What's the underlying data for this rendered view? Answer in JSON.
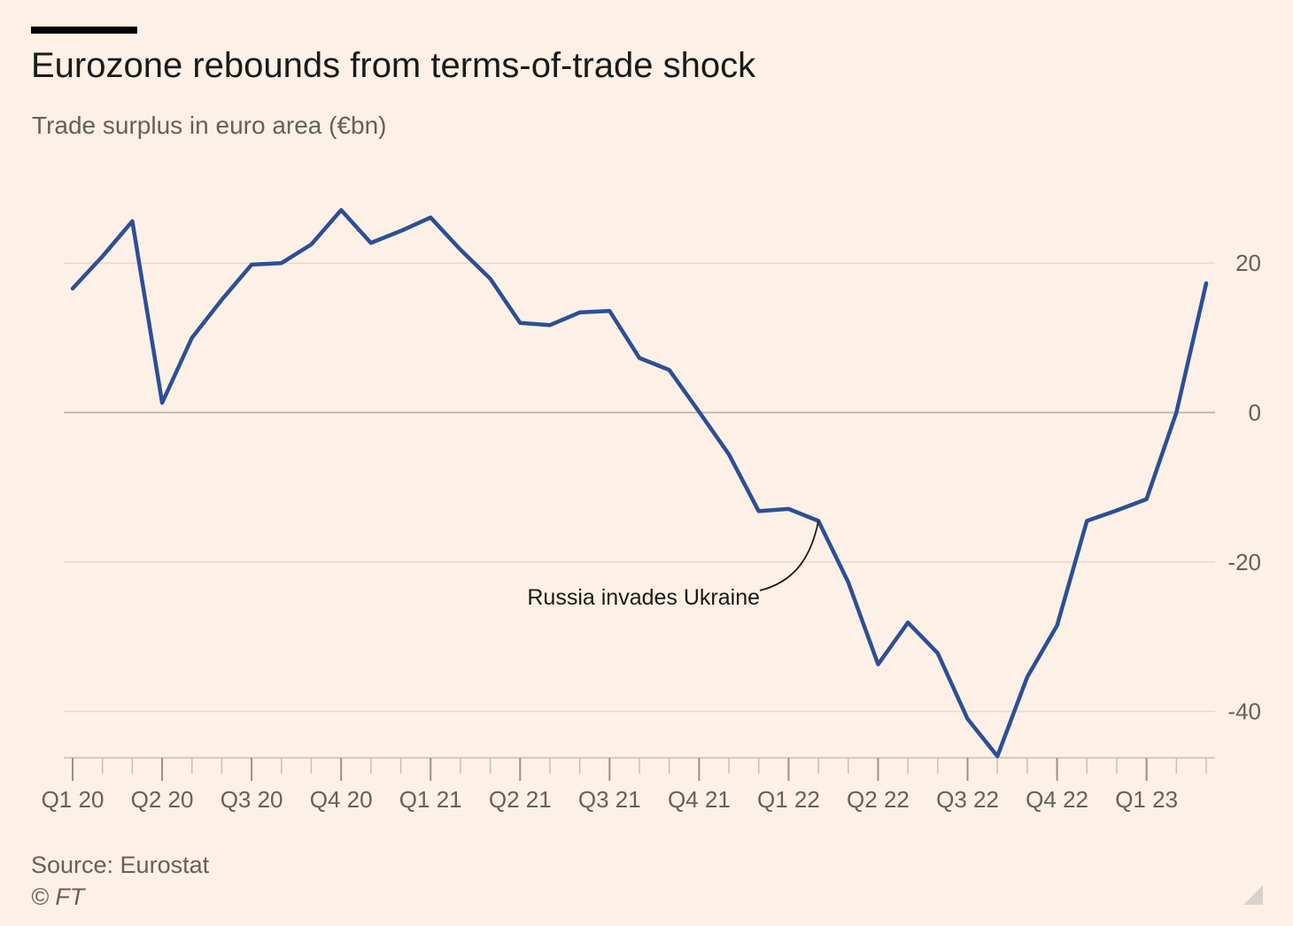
{
  "header": {
    "title": "Eurozone rebounds from terms-of-trade shock",
    "subtitle": "Trade surplus in euro area (€bn)"
  },
  "footer": {
    "source": "Source: Eurostat",
    "credit": "© FT"
  },
  "colors": {
    "background": "#fdf0e6",
    "line": "#2c4f95",
    "grid": "#e6d9ce",
    "text_muted": "#66605c"
  },
  "chart_data": {
    "type": "line",
    "title": "Eurozone rebounds from terms-of-trade shock",
    "subtitle": "Trade surplus in euro area (€bn)",
    "xlabel": "",
    "ylabel": "",
    "x_tick_labels": [
      "Q1 20",
      "Q2 20",
      "Q3 20",
      "Q4 20",
      "Q1 21",
      "Q2 21",
      "Q3 21",
      "Q4 21",
      "Q1 22",
      "Q2 22",
      "Q3 22",
      "Q4 22",
      "Q1 23"
    ],
    "y_ticks": [
      20,
      0,
      -20,
      -40
    ],
    "y_tick_labels": [
      "20",
      "0",
      "-20",
      "-40"
    ],
    "ylim": [
      -46,
      29
    ],
    "y_axis_position": "right",
    "grid": true,
    "series": [
      {
        "values": [
          16.6,
          20.9,
          25.6,
          1.3,
          10.0,
          15.1,
          19.8,
          20.0,
          22.5,
          27.1,
          22.7,
          24.3,
          26.1,
          21.8,
          17.9,
          12.0,
          11.7,
          13.4,
          13.6,
          7.3,
          5.7,
          0.1,
          -5.6,
          -13.2,
          -12.9,
          -14.5,
          -22.7,
          -33.7,
          -28.1,
          -32.2,
          -41.0,
          -46.0,
          -35.4,
          -28.5,
          -14.5,
          -13.1,
          -11.6,
          0.0,
          17.3
        ]
      }
    ],
    "annotations": [
      {
        "text": "Russia invades Ukraine",
        "point_index": 25
      }
    ]
  }
}
